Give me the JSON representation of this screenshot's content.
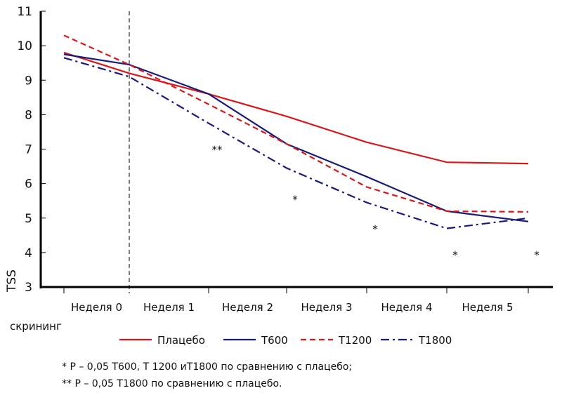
{
  "chart_data": {
    "type": "line",
    "title": "",
    "xlabel": "",
    "ylabel": "TSS",
    "ylim": [
      3,
      11
    ],
    "yticks": [
      "3",
      "4",
      "5",
      "6",
      "7",
      "8",
      "9",
      "10",
      "11"
    ],
    "x_points": [
      "скрининг",
      "Неделя 0",
      "Неделя 1",
      "Неделя 2",
      "Неделя 3",
      "Неделя 4",
      "Неделя 5"
    ],
    "category_labels": [
      "Неделя 0",
      "Неделя 1",
      "Неделя 2",
      "Неделя 3",
      "Неделя 4",
      "Неделя 5"
    ],
    "screening_label": "скрининг",
    "grid": false,
    "baseline_marker": "dashed vertical line at Неделя 0",
    "legend_position": "bottom",
    "series": [
      {
        "name": "Плацебо",
        "color": "#d7191c",
        "style": "solid",
        "values": [
          9.8,
          9.2,
          8.6,
          7.95,
          7.2,
          6.62,
          6.58
        ]
      },
      {
        "name": "T600",
        "color": "#1a1a7a",
        "style": "solid",
        "values": [
          9.75,
          9.45,
          8.6,
          7.15,
          6.2,
          5.2,
          4.9
        ]
      },
      {
        "name": "T1200",
        "color": "#d7191c",
        "style": "dashed",
        "values": [
          10.3,
          9.45,
          8.3,
          7.15,
          5.9,
          5.2,
          5.18
        ]
      },
      {
        "name": "T1800",
        "color": "#1a1a7a",
        "style": "dashdot",
        "values": [
          9.65,
          9.1,
          7.75,
          6.45,
          5.45,
          4.7,
          5.0
        ]
      }
    ],
    "annotations": [
      {
        "text": "**",
        "x_index": 2,
        "y": 7.0
      },
      {
        "text": "*",
        "x_index": 3,
        "y": 5.55
      },
      {
        "text": "*",
        "x_index": 4,
        "y": 4.7
      },
      {
        "text": "*",
        "x_index": 5,
        "y": 3.95
      },
      {
        "text": "*",
        "x_index": 6,
        "y": 3.95
      }
    ]
  },
  "notes": [
    "* P – 0,05 T600, T 1200 иT1800 по сравнению с плацебо;",
    "** P – 0,05 T1800 по сравнению с плацебо."
  ]
}
